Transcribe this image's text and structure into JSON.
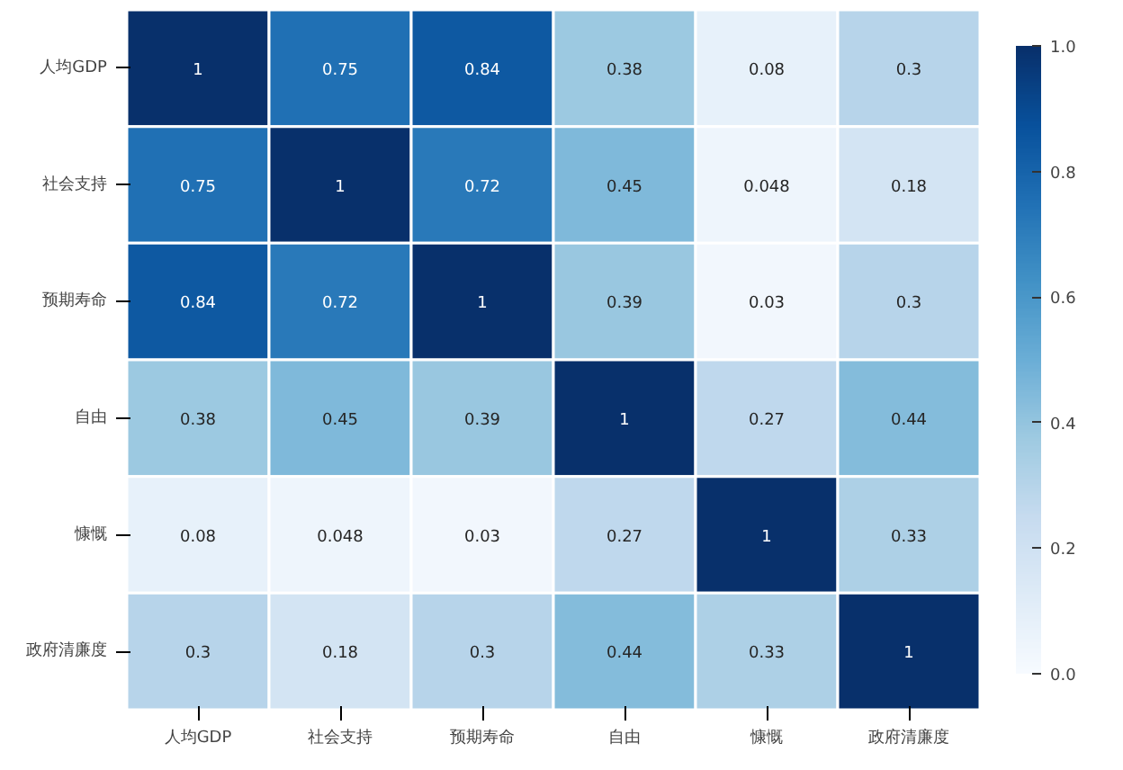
{
  "chart_data": {
    "type": "heatmap",
    "categories": [
      "人均GDP",
      "社会支持",
      "预期寿命",
      "自由",
      "慷慨",
      "政府清廉度"
    ],
    "y_categories": [
      "人均GDP",
      "社会支持",
      "预期寿命",
      "自由",
      "慷慨",
      "政府清廉度"
    ],
    "cells": [
      [
        1,
        0.75,
        0.84,
        0.38,
        0.08,
        0.3
      ],
      [
        0.75,
        1,
        0.72,
        0.45,
        0.048,
        0.18
      ],
      [
        0.84,
        0.72,
        1,
        0.39,
        0.03,
        0.3
      ],
      [
        0.38,
        0.45,
        0.39,
        1,
        0.27,
        0.44
      ],
      [
        0.08,
        0.048,
        0.03,
        0.27,
        1,
        0.33
      ],
      [
        0.3,
        0.18,
        0.3,
        0.44,
        0.33,
        1
      ]
    ],
    "clim": [
      0.0,
      1.0
    ],
    "cticks": [
      {
        "value": 0,
        "label": "0.0"
      },
      {
        "value": 0.2,
        "label": "0.2"
      },
      {
        "value": 0.4,
        "label": "0.4"
      },
      {
        "value": 0.6,
        "label": "0.6"
      },
      {
        "value": 0.8,
        "label": "0.8"
      },
      {
        "value": 1,
        "label": "1.0"
      }
    ],
    "data_labels": true
  }
}
